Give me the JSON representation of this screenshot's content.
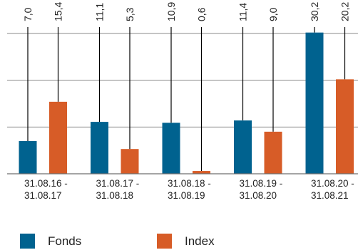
{
  "chart_data": {
    "type": "bar",
    "categories": [
      [
        "31.08.16 -",
        "31.08.17"
      ],
      [
        "31.08.17 -",
        "31.08.18"
      ],
      [
        "31.08.18 -",
        "31.08.19"
      ],
      [
        "31.08.19 -",
        "31.08.20"
      ],
      [
        "31.08.20 -",
        "31.08.21"
      ]
    ],
    "series": [
      {
        "name": "Fonds",
        "color": "#00628f",
        "values": [
          7.0,
          11.1,
          10.9,
          11.4,
          30.2
        ],
        "labels": [
          "7,0",
          "11,1",
          "10,9",
          "11,4",
          "30,2"
        ]
      },
      {
        "name": "Index",
        "color": "#d75c27",
        "values": [
          15.4,
          5.3,
          0.6,
          9.0,
          20.2
        ],
        "labels": [
          "15,4",
          "5,3",
          "0,6",
          "9,0",
          "20,2"
        ]
      }
    ],
    "ylim": [
      0,
      30
    ],
    "grid": true,
    "legend_position": "bottom-left"
  }
}
